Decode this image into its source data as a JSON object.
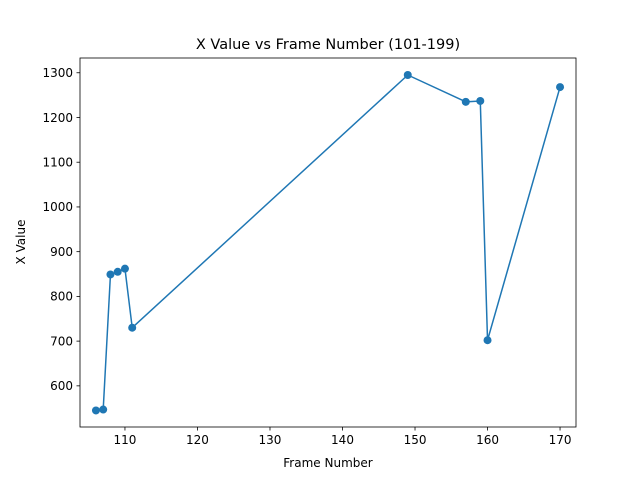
{
  "chart_data": {
    "type": "line",
    "title": "X Value vs Frame Number (101-199)",
    "xlabel": "Frame Number",
    "ylabel": "X Value",
    "xlim": [
      103.8,
      172.2
    ],
    "ylim": [
      508,
      1333
    ],
    "xticks": [
      110,
      120,
      130,
      140,
      150,
      160,
      170
    ],
    "yticks": [
      600,
      700,
      800,
      900,
      1000,
      1100,
      1200,
      1300
    ],
    "grid": false,
    "series": [
      {
        "color": "#1f77b4",
        "marker": "circle",
        "points": [
          {
            "x": 106,
            "y": 545
          },
          {
            "x": 107,
            "y": 547
          },
          {
            "x": 108,
            "y": 849
          },
          {
            "x": 109,
            "y": 855
          },
          {
            "x": 110,
            "y": 862
          },
          {
            "x": 111,
            "y": 730
          },
          {
            "x": 149,
            "y": 1295
          },
          {
            "x": 157,
            "y": 1235
          },
          {
            "x": 159,
            "y": 1237
          },
          {
            "x": 160,
            "y": 702
          },
          {
            "x": 170,
            "y": 1268
          }
        ]
      }
    ]
  }
}
